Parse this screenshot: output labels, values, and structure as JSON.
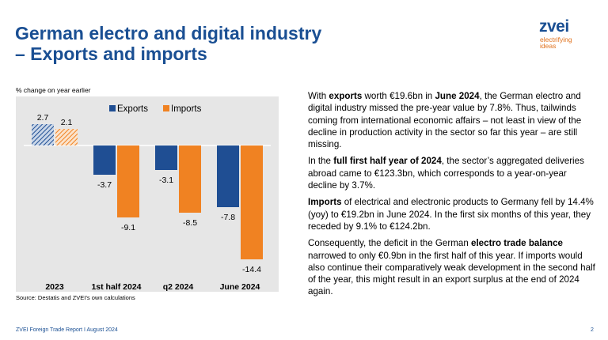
{
  "title": {
    "line1": "German electro and digital industry",
    "line2": "– Exports and imports"
  },
  "logo": {
    "word": "zvei",
    "tagline_line1": "electrifying",
    "tagline_line2": "ideas"
  },
  "chart_note": "% change on year earlier",
  "source": "Source: Destatis and ZVEI’s own calculations",
  "colors": {
    "title": "#1a4f93",
    "exports": "#1f4e93",
    "imports": "#f08222",
    "chart_background": "#e6e6e6"
  },
  "chart_data": {
    "type": "bar",
    "categories": [
      "2023",
      "1st half 2024",
      "q2 2024",
      "June 2024"
    ],
    "series": [
      {
        "name": "Exports",
        "values": [
          2.7,
          -3.7,
          -3.1,
          -7.8
        ]
      },
      {
        "name": "Imports",
        "values": [
          2.1,
          -9.1,
          -8.5,
          -14.4
        ]
      }
    ],
    "value_labels": {
      "Exports": [
        "2.7",
        "-3.7",
        "-3.1",
        "-7.8"
      ],
      "Imports": [
        "2.1",
        "-9.1",
        "-8.5",
        "-14.4"
      ]
    },
    "hatched_categories": [
      "2023"
    ],
    "ylim": [
      -16,
      4
    ],
    "grid": false,
    "legend": "top-center"
  },
  "text": [
    [
      "With ",
      "b:exports",
      " worth €19.6bn in ",
      "b:June 2024",
      ", the German electro and digital industry missed the pre-year value by 7.8%. Thus, tailwinds coming from international economic affairs – not least in view of the decline in production activity in the sector so far this year – are still missing."
    ],
    [
      "In the ",
      "b:full first half year of 2024",
      ", the sector’s aggregated deliveries abroad came to €123.3bn, which corresponds to a year-on-year decline by 3.7%."
    ],
    [
      "b:Imports",
      " of electrical and electronic products to Germany fell by 14.4% (yoy) to €19.2bn in June 2024. In the first six months of this year, they receded by 9.1% to €124.2bn."
    ],
    [
      "Consequently, the deficit in the German ",
      "b:electro trade balance",
      " narrowed to only €0.9bn in the first half of this year. If imports would also continue their comparatively weak development in the second half of the year, this might result in an export surplus at the end of 2024 again."
    ]
  ],
  "footer": "ZVEI Foreign Trade Report I August 2024",
  "page_number": "2"
}
